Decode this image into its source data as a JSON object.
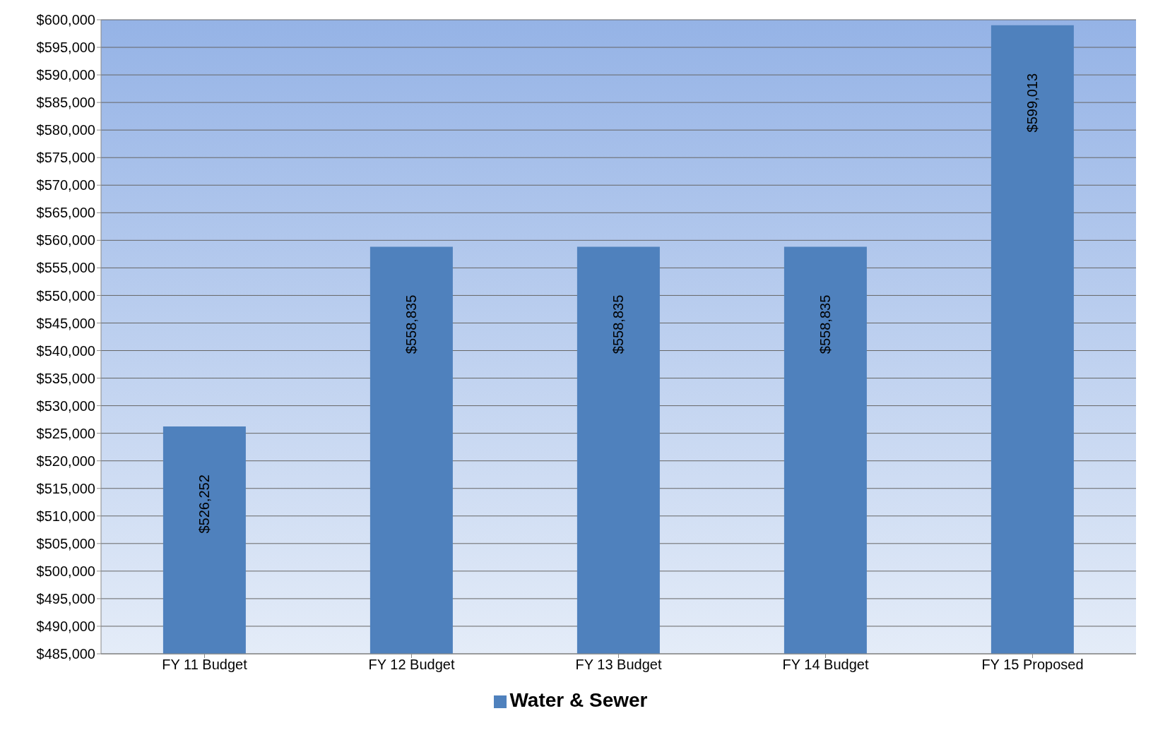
{
  "chart_data": {
    "type": "bar",
    "categories": [
      "FY 11  Budget",
      "FY 12 Budget",
      "FY 13 Budget",
      "FY 14 Budget",
      "FY 15 Proposed"
    ],
    "series": [
      {
        "name": "Water & Sewer",
        "color": "#4f81bd",
        "values": [
          526252,
          558835,
          558835,
          558835,
          599013
        ],
        "value_labels": [
          "$526,252",
          "$558,835",
          "$558,835",
          "$558,835",
          "$599,013"
        ]
      }
    ],
    "ylim": [
      485000,
      600000
    ],
    "yticks": [
      {
        "value": 485000,
        "label": "$485,000"
      },
      {
        "value": 490000,
        "label": "$490,000"
      },
      {
        "value": 495000,
        "label": "$495,000"
      },
      {
        "value": 500000,
        "label": "$500,000"
      },
      {
        "value": 505000,
        "label": "$505,000"
      },
      {
        "value": 510000,
        "label": "$510,000"
      },
      {
        "value": 515000,
        "label": "$515,000"
      },
      {
        "value": 520000,
        "label": "$520,000"
      },
      {
        "value": 525000,
        "label": "$525,000"
      },
      {
        "value": 530000,
        "label": "$530,000"
      },
      {
        "value": 535000,
        "label": "$535,000"
      },
      {
        "value": 540000,
        "label": "$540,000"
      },
      {
        "value": 545000,
        "label": "$545,000"
      },
      {
        "value": 550000,
        "label": "$550,000"
      },
      {
        "value": 555000,
        "label": "$555,000"
      },
      {
        "value": 560000,
        "label": "$560,000"
      },
      {
        "value": 565000,
        "label": "$565,000"
      },
      {
        "value": 570000,
        "label": "$570,000"
      },
      {
        "value": 575000,
        "label": "$575,000"
      },
      {
        "value": 580000,
        "label": "$580,000"
      },
      {
        "value": 585000,
        "label": "$585,000"
      },
      {
        "value": 590000,
        "label": "$590,000"
      },
      {
        "value": 595000,
        "label": "$595,000"
      },
      {
        "value": 600000,
        "label": "$600,000"
      }
    ],
    "grid": "y",
    "legend": "bottom"
  }
}
